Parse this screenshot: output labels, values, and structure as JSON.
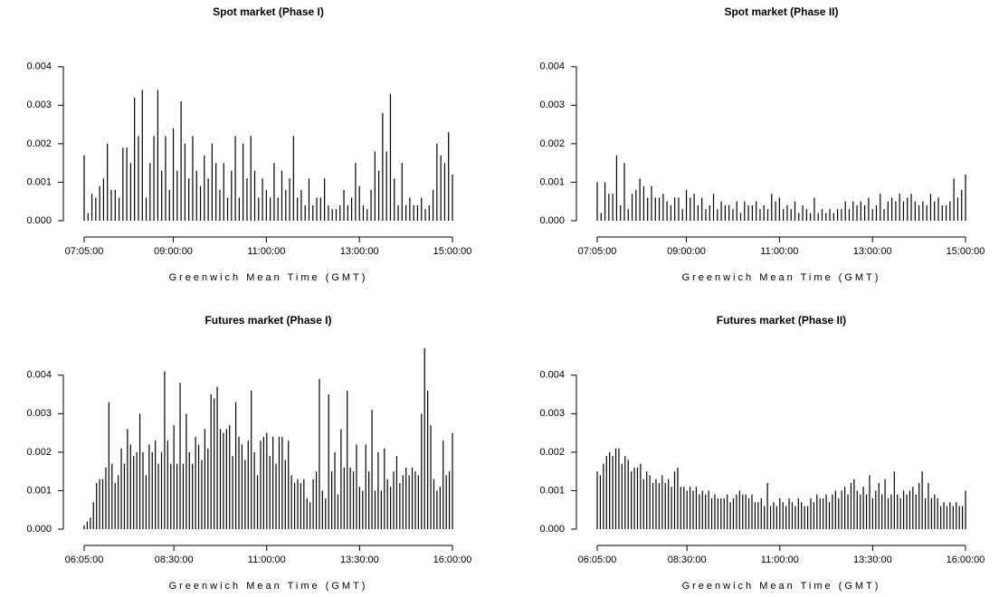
{
  "chart_data": [
    {
      "type": "bar",
      "title": "Spot market (Phase I)",
      "x_label": "Greenwich Mean Time (GMT)",
      "color": "#000000",
      "categories": [
        "07:05:00",
        null,
        null,
        null,
        null,
        null,
        null,
        null,
        null,
        null,
        null,
        null,
        null,
        null,
        null,
        null,
        null,
        null,
        null,
        null,
        null,
        null,
        null,
        "09:00:00",
        null,
        null,
        null,
        null,
        null,
        null,
        null,
        null,
        null,
        null,
        null,
        null,
        null,
        null,
        null,
        null,
        null,
        null,
        null,
        null,
        null,
        null,
        null,
        "11:00:00",
        null,
        null,
        null,
        null,
        null,
        null,
        null,
        null,
        null,
        null,
        null,
        null,
        null,
        null,
        null,
        null,
        null,
        null,
        null,
        null,
        null,
        null,
        null,
        "13:00:00",
        null,
        null,
        null,
        null,
        null,
        null,
        null,
        null,
        null,
        null,
        null,
        null,
        null,
        null,
        null,
        null,
        null,
        null,
        null,
        null,
        null,
        null,
        null,
        "15:00:00"
      ],
      "values": [
        0.0017,
        0.0002,
        0.0007,
        0.0006,
        0.0009,
        0.0011,
        0.002,
        0.0008,
        0.0008,
        0.0006,
        0.0019,
        0.0019,
        0.0015,
        0.0032,
        0.0022,
        0.0034,
        0.0006,
        0.0015,
        0.0022,
        0.0034,
        0.0013,
        0.0022,
        0.0008,
        0.0024,
        0.0013,
        0.0031,
        0.002,
        0.0011,
        0.0022,
        0.0013,
        0.0009,
        0.0017,
        0.0011,
        0.002,
        0.0015,
        0.0008,
        0.0015,
        0.0006,
        0.0013,
        0.0022,
        0.0006,
        0.002,
        0.0011,
        0.0022,
        0.0013,
        0.0006,
        0.0011,
        0.0008,
        0.0006,
        0.0015,
        0.0006,
        0.0013,
        0.0008,
        0.0011,
        0.0022,
        0.0006,
        0.0008,
        0.0004,
        0.0011,
        0.0004,
        0.0006,
        0.0006,
        0.0011,
        0.0004,
        0.0003,
        0.0003,
        0.0004,
        0.0008,
        0.0004,
        0.0006,
        0.0015,
        0.0009,
        0.0004,
        0.0003,
        0.0008,
        0.0018,
        0.0013,
        0.0028,
        0.0018,
        0.0033,
        0.0011,
        0.0004,
        0.0015,
        0.0004,
        0.0006,
        0.0004,
        0.0004,
        0.0006,
        0.0003,
        0.0004,
        0.0008,
        0.002,
        0.0017,
        0.0015,
        0.0023,
        0.0012
      ],
      "ylim": [
        -0.0002,
        0.0047
      ],
      "yticks": [
        {
          "value": 0,
          "label": "0.000"
        },
        {
          "value": 0.001,
          "label": "0.001"
        },
        {
          "value": 0.002,
          "label": "0.002"
        },
        {
          "value": 0.003,
          "label": "0.003"
        },
        {
          "value": 0.004,
          "label": "0.004"
        }
      ]
    },
    {
      "type": "bar",
      "title": "Spot market (Phase II)",
      "x_label": "Greenwich Mean Time (GMT)",
      "color": "#000000",
      "categories": [
        "07:05:00",
        null,
        null,
        null,
        null,
        null,
        null,
        null,
        null,
        null,
        null,
        null,
        null,
        null,
        null,
        null,
        null,
        null,
        null,
        null,
        null,
        null,
        null,
        "09:00:00",
        null,
        null,
        null,
        null,
        null,
        null,
        null,
        null,
        null,
        null,
        null,
        null,
        null,
        null,
        null,
        null,
        null,
        null,
        null,
        null,
        null,
        null,
        null,
        "11:00:00",
        null,
        null,
        null,
        null,
        null,
        null,
        null,
        null,
        null,
        null,
        null,
        null,
        null,
        null,
        null,
        null,
        null,
        null,
        null,
        null,
        null,
        null,
        null,
        "13:00:00",
        null,
        null,
        null,
        null,
        null,
        null,
        null,
        null,
        null,
        null,
        null,
        null,
        null,
        null,
        null,
        null,
        null,
        null,
        null,
        null,
        null,
        null,
        null,
        "15:00:00"
      ],
      "values": [
        0.001,
        0.0002,
        0.001,
        0.0007,
        0.0007,
        0.0017,
        0.0004,
        0.0015,
        0.0003,
        0.0007,
        0.0008,
        0.0011,
        0.0009,
        0.0006,
        0.0009,
        0.0006,
        0.0006,
        0.0007,
        0.0005,
        0.0004,
        0.0006,
        0.0006,
        0.0003,
        0.0008,
        0.0006,
        0.0007,
        0.0004,
        0.0006,
        0.0003,
        0.0004,
        0.0007,
        0.0003,
        0.0005,
        0.0004,
        0.0004,
        0.0003,
        0.0005,
        0.0002,
        0.0005,
        0.0004,
        0.0004,
        0.0005,
        0.0003,
        0.0004,
        0.0003,
        0.0007,
        0.0005,
        0.0006,
        0.0003,
        0.0004,
        0.0003,
        0.0005,
        0.0002,
        0.0004,
        0.0003,
        0.0002,
        0.0006,
        0.0002,
        0.0003,
        0.0002,
        0.0003,
        0.0002,
        0.0003,
        0.0003,
        0.0005,
        0.0003,
        0.0005,
        0.0004,
        0.0005,
        0.0004,
        0.0006,
        0.0003,
        0.0004,
        0.0007,
        0.0003,
        0.0005,
        0.0006,
        0.0005,
        0.0007,
        0.0005,
        0.0006,
        0.0007,
        0.0005,
        0.0004,
        0.0005,
        0.0004,
        0.0007,
        0.0005,
        0.0006,
        0.0004,
        0.0004,
        0.0005,
        0.0011,
        0.0006,
        0.0008,
        0.0012
      ],
      "ylim": [
        -0.0002,
        0.0047
      ],
      "yticks": [
        {
          "value": 0,
          "label": "0.000"
        },
        {
          "value": 0.001,
          "label": "0.001"
        },
        {
          "value": 0.002,
          "label": "0.002"
        },
        {
          "value": 0.003,
          "label": "0.003"
        },
        {
          "value": 0.004,
          "label": "0.004"
        }
      ]
    },
    {
      "type": "bar",
      "title": "Futures market (Phase I)",
      "x_label": "Greenwich Mean Time (GMT)",
      "color": "#000000",
      "categories": [
        "06:05:00",
        null,
        null,
        null,
        null,
        null,
        null,
        null,
        null,
        null,
        null,
        null,
        null,
        null,
        null,
        null,
        null,
        null,
        null,
        null,
        null,
        null,
        null,
        null,
        null,
        null,
        null,
        null,
        null,
        "08:30:00",
        null,
        null,
        null,
        null,
        null,
        null,
        null,
        null,
        null,
        null,
        null,
        null,
        null,
        null,
        null,
        null,
        null,
        null,
        null,
        null,
        null,
        null,
        null,
        null,
        null,
        null,
        null,
        null,
        null,
        "11:00:00",
        null,
        null,
        null,
        null,
        null,
        null,
        null,
        null,
        null,
        null,
        null,
        null,
        null,
        null,
        null,
        null,
        null,
        null,
        null,
        null,
        null,
        null,
        null,
        null,
        null,
        null,
        null,
        null,
        null,
        "13:30:00",
        null,
        null,
        null,
        null,
        null,
        null,
        null,
        null,
        null,
        null,
        null,
        null,
        null,
        null,
        null,
        null,
        null,
        null,
        null,
        null,
        null,
        null,
        null,
        null,
        null,
        null,
        null,
        null,
        null,
        "16:00:00"
      ],
      "values": [
        0.0001,
        0.0002,
        0.0003,
        0.0007,
        0.0012,
        0.0013,
        0.0013,
        0.0016,
        0.0033,
        0.0017,
        0.0012,
        0.0014,
        0.0021,
        0.0017,
        0.0026,
        0.0022,
        0.0019,
        0.002,
        0.003,
        0.002,
        0.0014,
        0.0022,
        0.002,
        0.0023,
        0.0017,
        0.002,
        0.0041,
        0.0023,
        0.0017,
        0.0027,
        0.0017,
        0.0038,
        0.0017,
        0.003,
        0.002,
        0.0017,
        0.0024,
        0.0022,
        0.0018,
        0.0026,
        0.0021,
        0.0035,
        0.0034,
        0.0037,
        0.0026,
        0.0025,
        0.0026,
        0.0027,
        0.0019,
        0.0033,
        0.0024,
        0.0022,
        0.0018,
        0.0023,
        0.0036,
        0.002,
        0.0014,
        0.0023,
        0.0024,
        0.0025,
        0.0019,
        0.0024,
        0.0017,
        0.0024,
        0.0024,
        0.0018,
        0.0023,
        0.0014,
        0.0012,
        0.0013,
        0.0012,
        0.0013,
        0.0008,
        0.0007,
        0.0013,
        0.0015,
        0.0039,
        0.001,
        0.0008,
        0.0035,
        0.0015,
        0.002,
        0.0009,
        0.0026,
        0.0016,
        0.0036,
        0.0016,
        0.0015,
        0.0022,
        0.0011,
        0.001,
        0.0022,
        0.0015,
        0.0031,
        0.001,
        0.002,
        0.001,
        0.0021,
        0.0013,
        0.0011,
        0.0015,
        0.0019,
        0.0012,
        0.0014,
        0.0016,
        0.0014,
        0.0016,
        0.0015,
        0.0014,
        0.003,
        0.0047,
        0.0036,
        0.0027,
        0.0013,
        0.001,
        0.0011,
        0.0023,
        0.0014,
        0.0015,
        0.0025
      ],
      "ylim": [
        -0.0002,
        0.0047
      ],
      "yticks": [
        {
          "value": 0,
          "label": "0.000"
        },
        {
          "value": 0.001,
          "label": "0.001"
        },
        {
          "value": 0.002,
          "label": "0.002"
        },
        {
          "value": 0.003,
          "label": "0.003"
        },
        {
          "value": 0.004,
          "label": "0.004"
        }
      ]
    },
    {
      "type": "bar",
      "title": "Futures market (Phase II)",
      "x_label": "Greenwich Mean Time (GMT)",
      "color": "#000000",
      "categories": [
        "06:05:00",
        null,
        null,
        null,
        null,
        null,
        null,
        null,
        null,
        null,
        null,
        null,
        null,
        null,
        null,
        null,
        null,
        null,
        null,
        null,
        null,
        null,
        null,
        null,
        null,
        null,
        null,
        null,
        null,
        "08:30:00",
        null,
        null,
        null,
        null,
        null,
        null,
        null,
        null,
        null,
        null,
        null,
        null,
        null,
        null,
        null,
        null,
        null,
        null,
        null,
        null,
        null,
        null,
        null,
        null,
        null,
        null,
        null,
        null,
        null,
        "11:00:00",
        null,
        null,
        null,
        null,
        null,
        null,
        null,
        null,
        null,
        null,
        null,
        null,
        null,
        null,
        null,
        null,
        null,
        null,
        null,
        null,
        null,
        null,
        null,
        null,
        null,
        null,
        null,
        null,
        null,
        "13:30:00",
        null,
        null,
        null,
        null,
        null,
        null,
        null,
        null,
        null,
        null,
        null,
        null,
        null,
        null,
        null,
        null,
        null,
        null,
        null,
        null,
        null,
        null,
        null,
        null,
        null,
        null,
        null,
        null,
        null,
        "16:00:00"
      ],
      "values": [
        0.0015,
        0.0014,
        0.0017,
        0.0019,
        0.002,
        0.0019,
        0.0021,
        0.0021,
        0.0017,
        0.0019,
        0.0018,
        0.0015,
        0.0016,
        0.0016,
        0.0017,
        0.0013,
        0.0015,
        0.0014,
        0.0012,
        0.0013,
        0.0012,
        0.0014,
        0.0012,
        0.0013,
        0.0011,
        0.0015,
        0.0016,
        0.0011,
        0.0011,
        0.001,
        0.0011,
        0.001,
        0.0011,
        0.0009,
        0.001,
        0.0009,
        0.001,
        0.0008,
        0.0009,
        0.0008,
        0.0008,
        0.0008,
        0.0009,
        0.0007,
        0.0008,
        0.0009,
        0.001,
        0.0009,
        0.0009,
        0.0008,
        0.0009,
        0.0007,
        0.0007,
        0.0008,
        0.0006,
        0.0012,
        0.0006,
        0.0007,
        0.0006,
        0.0008,
        0.0007,
        0.0006,
        0.0008,
        0.0007,
        0.0006,
        0.0008,
        0.0007,
        0.0006,
        0.0006,
        0.0008,
        0.0007,
        0.0009,
        0.0008,
        0.0008,
        0.0009,
        0.0007,
        0.0009,
        0.001,
        0.0008,
        0.001,
        0.0011,
        0.0009,
        0.0012,
        0.0013,
        0.001,
        0.0009,
        0.0011,
        0.0009,
        0.0014,
        0.0008,
        0.001,
        0.0012,
        0.0009,
        0.0013,
        0.0008,
        0.0009,
        0.0015,
        0.0009,
        0.0008,
        0.001,
        0.0009,
        0.001,
        0.0011,
        0.0009,
        0.0012,
        0.0015,
        0.0008,
        0.0012,
        0.0008,
        0.0009,
        0.0008,
        0.0006,
        0.0007,
        0.0006,
        0.0007,
        0.0006,
        0.0007,
        0.0006,
        0.0006,
        0.001
      ],
      "ylim": [
        -0.0002,
        0.0047
      ],
      "yticks": [
        {
          "value": 0,
          "label": "0.000"
        },
        {
          "value": 0.001,
          "label": "0.001"
        },
        {
          "value": 0.002,
          "label": "0.002"
        },
        {
          "value": 0.003,
          "label": "0.003"
        },
        {
          "value": 0.004,
          "label": "0.004"
        }
      ]
    }
  ]
}
